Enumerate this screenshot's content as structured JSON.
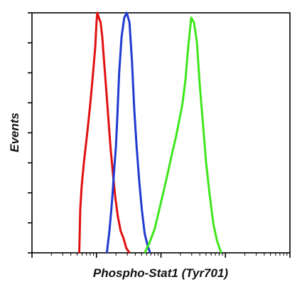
{
  "chart_data": {
    "type": "line",
    "title": "",
    "xlabel": "Phospho-Stat1 (Tyr701)",
    "ylabel": "Events",
    "x_scale": "log",
    "xlim": [
      1,
      10000
    ],
    "ylim": [
      0,
      100
    ],
    "grid": false,
    "legend": "none",
    "series": [
      {
        "color": "#e01010",
        "x": [
          5.4,
          5.5,
          5.6,
          5.9,
          6.4,
          7.2,
          8.0,
          8.8,
          9.6,
          10.0,
          10.3,
          10.9,
          11.6,
          12.3,
          13.1,
          14.0,
          15.1,
          16.5,
          18.0,
          19.6,
          21.5,
          23.8,
          26.3,
          29.0,
          32.5
        ],
        "y": [
          0,
          8,
          18,
          28,
          38,
          50,
          62,
          74,
          86,
          96,
          100,
          98,
          96,
          90,
          80,
          70,
          58,
          44,
          33,
          23,
          15,
          9,
          6,
          2,
          0
        ]
      },
      {
        "color": "#1f3bd0",
        "x": [
          14.5,
          16.0,
          17.5,
          19.0,
          20.0,
          21.0,
          22.5,
          24.5,
          27.0,
          29.5,
          32.5,
          35.5,
          38.5,
          42.0,
          46.0,
          50.5,
          56.0,
          62.0,
          68.0
        ],
        "y": [
          0,
          10,
          22,
          36,
          44,
          56,
          75,
          90,
          98,
          100,
          96,
          80,
          60,
          44,
          30,
          18,
          8,
          3,
          0
        ]
      },
      {
        "color": "#3ee61c",
        "x": [
          56,
          66,
          80,
          98,
          120,
          145,
          170,
          195,
          215,
          240,
          265,
          295,
          325,
          360,
          400,
          445,
          500,
          570,
          650,
          740,
          860
        ],
        "y": [
          0,
          4,
          10,
          20,
          30,
          40,
          48,
          56,
          62,
          72,
          86,
          98,
          96,
          88,
          70,
          55,
          38,
          24,
          12,
          5,
          0
        ]
      }
    ]
  }
}
